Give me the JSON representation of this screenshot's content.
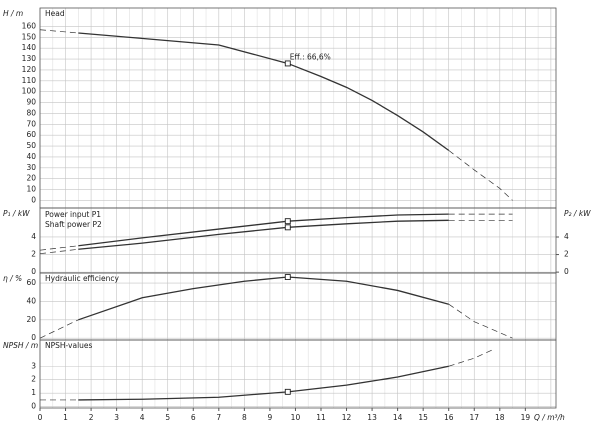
{
  "chart_data": [
    {
      "type": "line",
      "axis_label": "H / m",
      "panel_label": "Head",
      "annotation": "Eff.: 66,6%",
      "duty_point_q": 9.7,
      "xlim": [
        0,
        20.2
      ],
      "ylim": [
        -7,
        177
      ],
      "yticks": [
        0,
        10,
        20,
        30,
        40,
        50,
        60,
        70,
        80,
        90,
        100,
        110,
        120,
        130,
        140,
        150,
        160
      ],
      "grid": true,
      "x": [
        0,
        1.5,
        3,
        5,
        7,
        9.7,
        11,
        12,
        13,
        14,
        15,
        16,
        17,
        18,
        18.5
      ],
      "series": [
        {
          "name": "Head",
          "color": "#333333",
          "values": [
            null,
            154,
            151,
            147,
            143,
            126,
            114,
            104,
            92,
            78,
            63,
            46,
            null,
            null,
            null
          ],
          "extrapolated": [
            157,
            154,
            null,
            null,
            null,
            null,
            null,
            null,
            null,
            null,
            null,
            46,
            28,
            11,
            0
          ]
        }
      ]
    },
    {
      "type": "line",
      "axis_label": "P₁ / kW",
      "y2_axis_label": "P₂ / kW",
      "duty_point_q": 9.7,
      "xlim": [
        0,
        20.2
      ],
      "ylim": [
        -0.1,
        7.3
      ],
      "yticks": [
        0,
        2,
        4
      ],
      "y2lim": [
        -0.1,
        7.3
      ],
      "y2ticks": [
        0,
        2,
        4
      ],
      "grid": true,
      "x": [
        0,
        1.5,
        4,
        7,
        9.7,
        12,
        14,
        16,
        18.5
      ],
      "series": [
        {
          "name": "Power input P1",
          "color": "#333333",
          "values": [
            null,
            3.0,
            3.9,
            4.9,
            5.8,
            6.2,
            6.5,
            6.6,
            null
          ],
          "extrapolated": [
            2.5,
            3.0,
            null,
            null,
            null,
            null,
            null,
            6.6,
            6.6
          ]
        },
        {
          "name": "Shaft power P2",
          "color": "#333333",
          "values": [
            null,
            2.6,
            3.3,
            4.3,
            5.1,
            5.5,
            5.8,
            5.9,
            null
          ],
          "extrapolated": [
            2.1,
            2.6,
            null,
            null,
            null,
            null,
            null,
            5.9,
            5.9
          ]
        }
      ]
    },
    {
      "type": "line",
      "axis_label": "η / %",
      "panel_label": "Hydraulic efficiency",
      "duty_point_q": 9.7,
      "xlim": [
        0,
        20.2
      ],
      "ylim": [
        -2,
        71
      ],
      "yticks": [
        0,
        20,
        40,
        60
      ],
      "grid": true,
      "x": [
        0,
        1.5,
        4,
        6,
        8,
        9.7,
        12,
        14,
        16,
        17,
        18.5
      ],
      "series": [
        {
          "name": "Hydraulic efficiency",
          "color": "#333333",
          "values": [
            null,
            20,
            44,
            54,
            62,
            66.6,
            62,
            52,
            37,
            null,
            null
          ],
          "extrapolated": [
            0,
            20,
            null,
            null,
            null,
            null,
            null,
            null,
            37,
            18,
            0
          ]
        }
      ]
    },
    {
      "type": "line",
      "axis_label": "NPSH / m",
      "panel_label": "NPSH-values",
      "duty_point_q": 9.7,
      "x_axis_label": "Q / m³/h",
      "xlim": [
        0,
        20.2
      ],
      "ylim": [
        -0.1,
        4.95
      ],
      "yticks": [
        0,
        1,
        2,
        3
      ],
      "grid": true,
      "xticks": [
        0,
        1,
        2,
        3,
        4,
        5,
        6,
        7,
        8,
        9,
        10,
        11,
        12,
        13,
        14,
        15,
        16,
        17,
        18,
        19
      ],
      "x": [
        0,
        1.5,
        4,
        7,
        9.7,
        12,
        14,
        16,
        17,
        17.8
      ],
      "series": [
        {
          "name": "NPSH-values",
          "color": "#333333",
          "values": [
            null,
            0.5,
            0.55,
            0.7,
            1.1,
            1.6,
            2.2,
            3.0,
            null,
            null
          ],
          "extrapolated": [
            0.5,
            0.5,
            null,
            null,
            null,
            null,
            null,
            3.0,
            3.6,
            4.3
          ]
        }
      ]
    }
  ]
}
